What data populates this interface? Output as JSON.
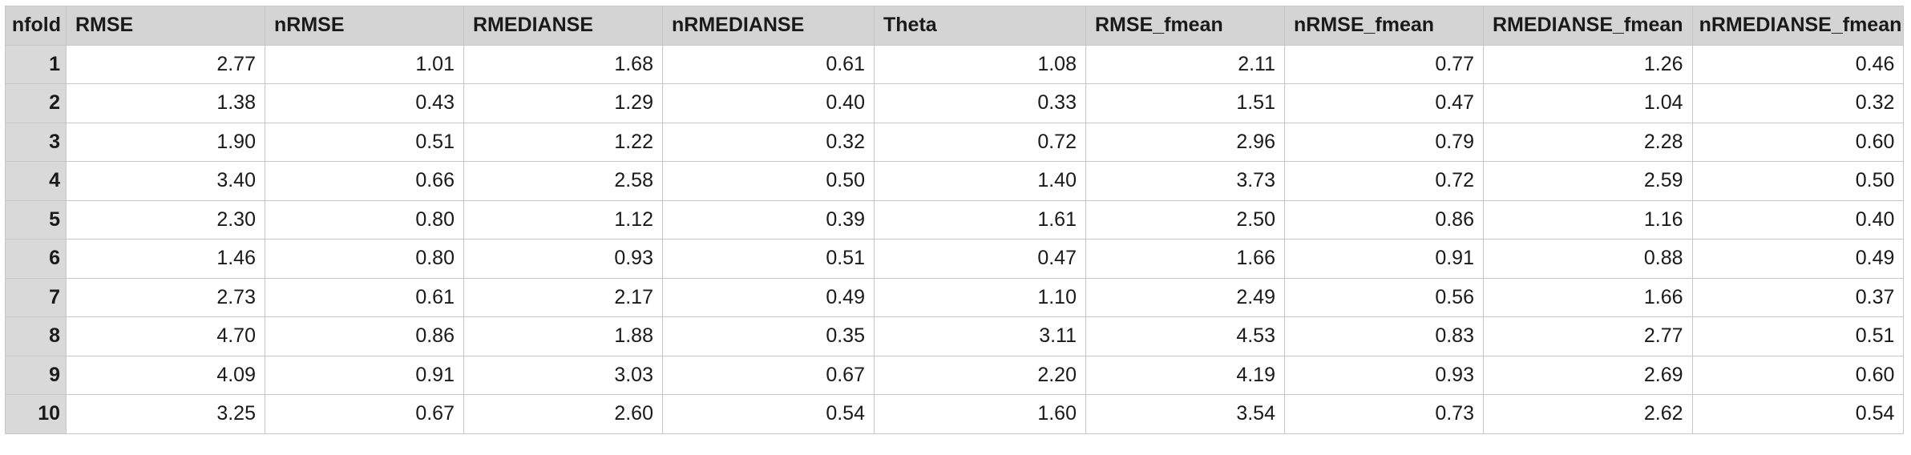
{
  "table": {
    "index_header": "nfold",
    "columns": [
      "RMSE",
      "nRMSE",
      "RMEDIANSE",
      "nRMEDIANSE",
      "Theta",
      "RMSE_fmean",
      "nRMSE_fmean",
      "RMEDIANSE_fmean",
      "nRMEDIANSE_fmean"
    ],
    "rows": [
      {
        "index": "1",
        "cells": [
          "2.77",
          "1.01",
          "1.68",
          "0.61",
          "1.08",
          "2.11",
          "0.77",
          "1.26",
          "0.46"
        ]
      },
      {
        "index": "2",
        "cells": [
          "1.38",
          "0.43",
          "1.29",
          "0.40",
          "0.33",
          "1.51",
          "0.47",
          "1.04",
          "0.32"
        ]
      },
      {
        "index": "3",
        "cells": [
          "1.90",
          "0.51",
          "1.22",
          "0.32",
          "0.72",
          "2.96",
          "0.79",
          "2.28",
          "0.60"
        ]
      },
      {
        "index": "4",
        "cells": [
          "3.40",
          "0.66",
          "2.58",
          "0.50",
          "1.40",
          "3.73",
          "0.72",
          "2.59",
          "0.50"
        ]
      },
      {
        "index": "5",
        "cells": [
          "2.30",
          "0.80",
          "1.12",
          "0.39",
          "1.61",
          "2.50",
          "0.86",
          "1.16",
          "0.40"
        ]
      },
      {
        "index": "6",
        "cells": [
          "1.46",
          "0.80",
          "0.93",
          "0.51",
          "0.47",
          "1.66",
          "0.91",
          "0.88",
          "0.49"
        ]
      },
      {
        "index": "7",
        "cells": [
          "2.73",
          "0.61",
          "2.17",
          "0.49",
          "1.10",
          "2.49",
          "0.56",
          "1.66",
          "0.37"
        ]
      },
      {
        "index": "8",
        "cells": [
          "4.70",
          "0.86",
          "1.88",
          "0.35",
          "3.11",
          "4.53",
          "0.83",
          "2.77",
          "0.51"
        ]
      },
      {
        "index": "9",
        "cells": [
          "4.09",
          "0.91",
          "3.03",
          "0.67",
          "2.20",
          "4.19",
          "0.93",
          "2.69",
          "0.60"
        ]
      },
      {
        "index": "10",
        "cells": [
          "3.25",
          "0.67",
          "2.60",
          "0.54",
          "1.60",
          "3.54",
          "0.73",
          "2.62",
          "0.54"
        ]
      }
    ]
  }
}
